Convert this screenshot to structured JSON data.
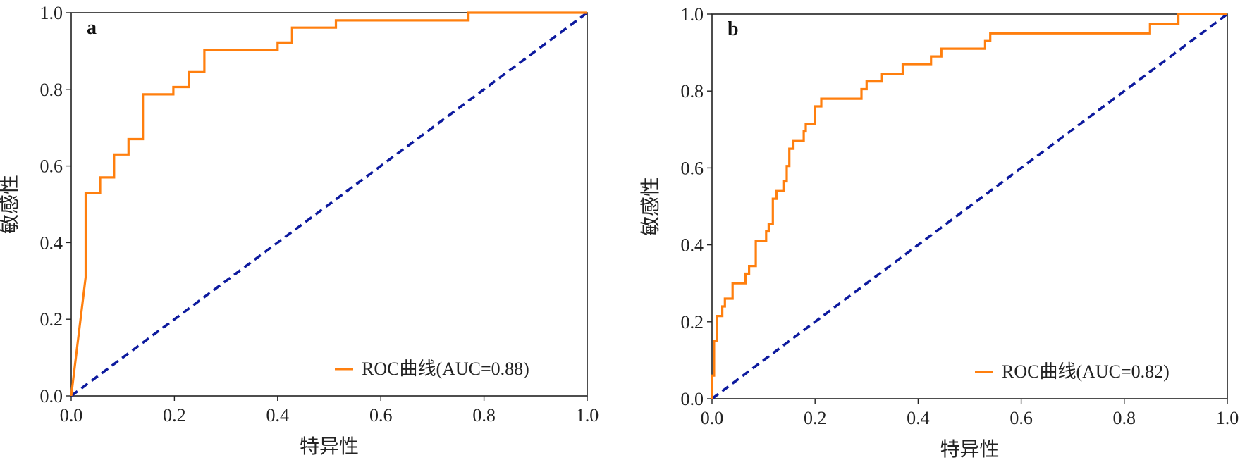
{
  "chart_data": [
    {
      "type": "line",
      "panel_label": "a",
      "xlabel": "特异性",
      "ylabel": "敏感性",
      "xlim": [
        0,
        1
      ],
      "ylim": [
        0,
        1
      ],
      "xticks": [
        "0.0",
        "0.2",
        "0.4",
        "0.6",
        "0.8",
        "1.0"
      ],
      "yticks": [
        "0.0",
        "0.2",
        "0.4",
        "0.6",
        "0.8",
        "1.0"
      ],
      "legend_position": "bottom-right",
      "series": [
        {
          "name": "ROC曲线(AUC=0.88)",
          "color": "#ff7f0e",
          "style": "solid",
          "points": [
            [
              0,
              0
            ],
            [
              0.028,
              0.31
            ],
            [
              0.028,
              0.53
            ],
            [
              0.056,
              0.53
            ],
            [
              0.056,
              0.57
            ],
            [
              0.083,
              0.57
            ],
            [
              0.083,
              0.63
            ],
            [
              0.111,
              0.63
            ],
            [
              0.111,
              0.67
            ],
            [
              0.139,
              0.67
            ],
            [
              0.139,
              0.787
            ],
            [
              0.198,
              0.787
            ],
            [
              0.198,
              0.806
            ],
            [
              0.228,
              0.806
            ],
            [
              0.228,
              0.845
            ],
            [
              0.258,
              0.845
            ],
            [
              0.258,
              0.903
            ],
            [
              0.4,
              0.903
            ],
            [
              0.4,
              0.922
            ],
            [
              0.428,
              0.922
            ],
            [
              0.428,
              0.961
            ],
            [
              0.513,
              0.961
            ],
            [
              0.513,
              0.98
            ],
            [
              0.77,
              0.98
            ],
            [
              0.77,
              1.0
            ],
            [
              1.0,
              1.0
            ]
          ]
        },
        {
          "name": "",
          "color": "#0d1a9e",
          "style": "dashed",
          "points": [
            [
              0,
              0
            ],
            [
              1,
              1
            ]
          ]
        }
      ]
    },
    {
      "type": "line",
      "panel_label": "b",
      "xlabel": "特异性",
      "ylabel": "敏感性",
      "xlim": [
        0,
        1
      ],
      "ylim": [
        0,
        1
      ],
      "xticks": [
        "0.0",
        "0.2",
        "0.4",
        "0.6",
        "0.8",
        "1.0"
      ],
      "yticks": [
        "0.0",
        "0.2",
        "0.4",
        "0.6",
        "0.8",
        "1.0"
      ],
      "legend_position": "bottom-right",
      "series": [
        {
          "name": "ROC曲线(AUC=0.82)",
          "color": "#ff7f0e",
          "style": "solid",
          "points": [
            [
              0,
              0
            ],
            [
              0,
              0.06
            ],
            [
              0.004,
              0.06
            ],
            [
              0.004,
              0.15
            ],
            [
              0.01,
              0.15
            ],
            [
              0.01,
              0.215
            ],
            [
              0.02,
              0.215
            ],
            [
              0.02,
              0.24
            ],
            [
              0.025,
              0.24
            ],
            [
              0.025,
              0.26
            ],
            [
              0.04,
              0.26
            ],
            [
              0.04,
              0.3
            ],
            [
              0.065,
              0.3
            ],
            [
              0.065,
              0.325
            ],
            [
              0.072,
              0.325
            ],
            [
              0.072,
              0.345
            ],
            [
              0.085,
              0.345
            ],
            [
              0.085,
              0.41
            ],
            [
              0.105,
              0.41
            ],
            [
              0.105,
              0.435
            ],
            [
              0.11,
              0.435
            ],
            [
              0.11,
              0.455
            ],
            [
              0.118,
              0.455
            ],
            [
              0.118,
              0.52
            ],
            [
              0.125,
              0.52
            ],
            [
              0.125,
              0.54
            ],
            [
              0.14,
              0.54
            ],
            [
              0.14,
              0.565
            ],
            [
              0.145,
              0.565
            ],
            [
              0.145,
              0.605
            ],
            [
              0.15,
              0.605
            ],
            [
              0.15,
              0.65
            ],
            [
              0.158,
              0.65
            ],
            [
              0.158,
              0.67
            ],
            [
              0.178,
              0.67
            ],
            [
              0.178,
              0.695
            ],
            [
              0.182,
              0.695
            ],
            [
              0.182,
              0.715
            ],
            [
              0.2,
              0.715
            ],
            [
              0.2,
              0.76
            ],
            [
              0.212,
              0.76
            ],
            [
              0.212,
              0.78
            ],
            [
              0.29,
              0.78
            ],
            [
              0.29,
              0.805
            ],
            [
              0.3,
              0.805
            ],
            [
              0.3,
              0.825
            ],
            [
              0.33,
              0.825
            ],
            [
              0.33,
              0.845
            ],
            [
              0.37,
              0.845
            ],
            [
              0.37,
              0.87
            ],
            [
              0.425,
              0.87
            ],
            [
              0.425,
              0.89
            ],
            [
              0.445,
              0.89
            ],
            [
              0.445,
              0.91
            ],
            [
              0.53,
              0.91
            ],
            [
              0.53,
              0.93
            ],
            [
              0.54,
              0.93
            ],
            [
              0.54,
              0.95
            ],
            [
              0.85,
              0.95
            ],
            [
              0.85,
              0.975
            ],
            [
              0.905,
              0.975
            ],
            [
              0.905,
              1.0
            ],
            [
              1.0,
              1.0
            ]
          ]
        },
        {
          "name": "",
          "color": "#0d1a9e",
          "style": "dashed",
          "points": [
            [
              0,
              0
            ],
            [
              1,
              1
            ]
          ]
        }
      ]
    }
  ]
}
